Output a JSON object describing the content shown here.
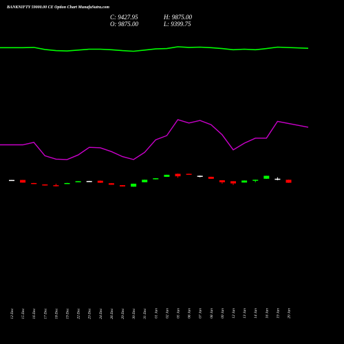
{
  "header": {
    "title": "BANKNIFTY 59000.00 CE Option Chart MunafaSutra.com",
    "close_label": "C: 9427.95",
    "high_label": "H: 9875.00",
    "open_label": "O: 9875.00",
    "low_label": "L: 9399.75"
  },
  "colors": {
    "background": "#000000",
    "up_candle": "#00ff00",
    "down_candle": "#ff0000",
    "doji": "#ffffff",
    "line_top": "#00ff00",
    "line_mid": "#cc00cc"
  },
  "chart_data": {
    "type": "candlestick",
    "categories": [
      "12 Dec",
      "15 Dec",
      "16 Dec",
      "17 Dec",
      "18 Dec",
      "19 Dec",
      "22 Dec",
      "23 Dec",
      "24 Dec",
      "26 Dec",
      "29 Dec",
      "30 Dec",
      "31 Dec",
      "01 Jan",
      "02 Jan",
      "05 Jan",
      "06 Jan",
      "07 Jan",
      "08 Jan",
      "09 Jan",
      "12 Jan",
      "13 Jan",
      "14 Jan",
      "16 Jan",
      "19 Jan",
      "20 Jan"
    ],
    "candles": [
      {
        "open": 0.5,
        "close": 0.51,
        "high": 0.515,
        "low": 0.495
      },
      {
        "open": 0.51,
        "close": 0.405,
        "high": 0.515,
        "low": 0.4
      },
      {
        "open": 0.39,
        "close": 0.35,
        "high": 0.395,
        "low": 0.345
      },
      {
        "open": 0.33,
        "close": 0.295,
        "high": 0.335,
        "low": 0.285
      },
      {
        "open": 0.3,
        "close": 0.28,
        "high": 0.36,
        "low": 0.25
      },
      {
        "open": 0.36,
        "close": 0.39,
        "high": 0.395,
        "low": 0.355
      },
      {
        "open": 0.43,
        "close": 0.46,
        "high": 0.465,
        "low": 0.425
      },
      {
        "open": 0.46,
        "close": 0.47,
        "high": 0.475,
        "low": 0.455
      },
      {
        "open": 0.48,
        "close": 0.4,
        "high": 0.49,
        "low": 0.395
      },
      {
        "open": 0.38,
        "close": 0.32,
        "high": 0.385,
        "low": 0.315
      },
      {
        "open": 0.3,
        "close": 0.25,
        "high": 0.305,
        "low": 0.245
      },
      {
        "open": 0.24,
        "close": 0.36,
        "high": 0.365,
        "low": 0.235
      },
      {
        "open": 0.42,
        "close": 0.52,
        "high": 0.525,
        "low": 0.415
      },
      {
        "open": 0.54,
        "close": 0.58,
        "high": 0.585,
        "low": 0.535
      },
      {
        "open": 0.64,
        "close": 0.72,
        "high": 0.725,
        "low": 0.635
      },
      {
        "open": 0.76,
        "close": 0.66,
        "high": 0.77,
        "low": 0.6
      },
      {
        "open": 0.76,
        "close": 0.74,
        "high": 0.765,
        "low": 0.735
      },
      {
        "open": 0.68,
        "close": 0.67,
        "high": 0.69,
        "low": 0.62
      },
      {
        "open": 0.64,
        "close": 0.56,
        "high": 0.645,
        "low": 0.555
      },
      {
        "open": 0.5,
        "close": 0.42,
        "high": 0.505,
        "low": 0.36
      },
      {
        "open": 0.46,
        "close": 0.37,
        "high": 0.465,
        "low": 0.31
      },
      {
        "open": 0.41,
        "close": 0.49,
        "high": 0.495,
        "low": 0.405
      },
      {
        "open": 0.48,
        "close": 0.52,
        "high": 0.525,
        "low": 0.42
      },
      {
        "open": 0.56,
        "close": 0.68,
        "high": 0.685,
        "low": 0.555
      },
      {
        "open": 0.56,
        "close": 0.555,
        "high": 0.62,
        "low": 0.5
      },
      {
        "open": 0.52,
        "close": 0.4,
        "high": 0.525,
        "low": 0.395
      }
    ],
    "line_top": [
      0.62,
      0.62,
      0.63,
      0.56,
      0.52,
      0.51,
      0.54,
      0.57,
      0.57,
      0.55,
      0.52,
      0.5,
      0.54,
      0.58,
      0.59,
      0.65,
      0.63,
      0.64,
      0.62,
      0.59,
      0.55,
      0.57,
      0.55,
      0.59,
      0.64,
      0.6
    ],
    "line_mid": [
      0.34,
      0.34,
      0.37,
      0.21,
      0.17,
      0.165,
      0.22,
      0.31,
      0.305,
      0.26,
      0.2,
      0.165,
      0.25,
      0.4,
      0.45,
      0.64,
      0.6,
      0.63,
      0.58,
      0.46,
      0.28,
      0.36,
      0.42,
      0.42,
      0.62,
      0.55
    ]
  }
}
